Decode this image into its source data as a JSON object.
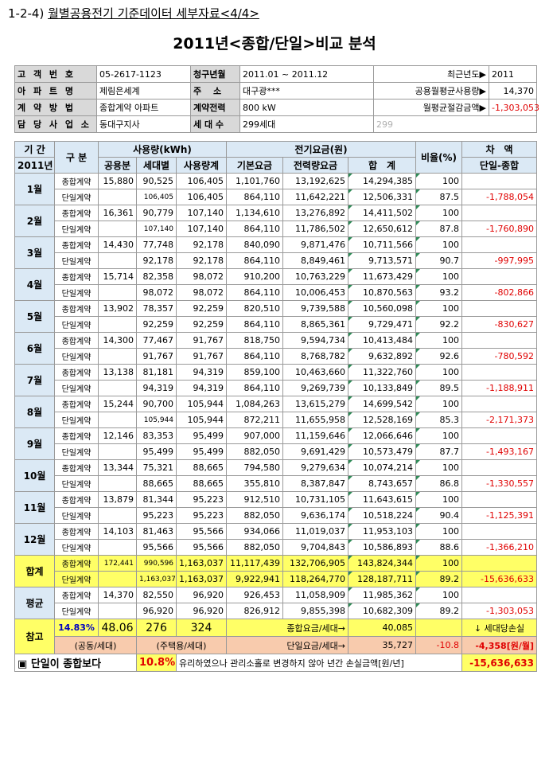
{
  "heading": {
    "prefix": "1-2-4)",
    "text": "월별공용전기 기준데이터 세부자료<4/4>"
  },
  "title": "2011년<종합/단일>비교 분석",
  "info": {
    "customer_no_label": "고 객 번 호",
    "customer_no": "05-2617-1123",
    "bill_month_label": "청구년월",
    "bill_month": "2011.01 ~ 2011.12",
    "recent_year_label": "최근년도▶",
    "recent_year": "2011",
    "apt_label": "아 파 트 명",
    "apt": "제림은세계",
    "address_label": "주　 소",
    "address": "대구광***",
    "avg_usage_label": "공용월평균사용량▶",
    "avg_usage": "14,370",
    "contract_label": "계 약 방 법",
    "contract": "종합계약 아파트",
    "contract_power_label": "계약전력",
    "contract_power": "800 kW",
    "avg_saving_label": "월평균절감금액▶",
    "avg_saving": "-1,303,053",
    "office_label": "담 당 사 업 소",
    "office": "동대구지사",
    "households_label": "세 대 수",
    "households": "299세대",
    "households_num": "299"
  },
  "headers": {
    "period": "기 간",
    "year": "2011년",
    "category": "구 분",
    "usage": "사용량(kWh)",
    "public": "공용분",
    "household": "세대별",
    "usage_total": "사용량계",
    "bill": "전기요금(원)",
    "base": "기본요금",
    "energy": "전력량요금",
    "total": "합　계",
    "ratio": "비율(%)",
    "diff": "차　액",
    "diff_sub": "단일-종합"
  },
  "type_labels": {
    "combined": "종합계약",
    "single": "단일계약"
  },
  "months": [
    {
      "label": "1월",
      "c": [
        "15,880",
        "90,525",
        "106,405",
        "1,101,760",
        "13,192,625",
        "14,294,385",
        "100",
        ""
      ],
      "s": [
        "",
        "106,405",
        "106,405",
        "864,110",
        "11,642,221",
        "12,506,331",
        "87.5",
        "-1,788,054"
      ]
    },
    {
      "label": "2월",
      "c": [
        "16,361",
        "90,779",
        "107,140",
        "1,134,610",
        "13,276,892",
        "14,411,502",
        "100",
        ""
      ],
      "s": [
        "",
        "107,140",
        "107,140",
        "864,110",
        "11,786,502",
        "12,650,612",
        "87.8",
        "-1,760,890"
      ]
    },
    {
      "label": "3월",
      "c": [
        "14,430",
        "77,748",
        "92,178",
        "840,090",
        "9,871,476",
        "10,711,566",
        "100",
        ""
      ],
      "s": [
        "",
        "92,178",
        "92,178",
        "864,110",
        "8,849,461",
        "9,713,571",
        "90.7",
        "-997,995"
      ]
    },
    {
      "label": "4월",
      "c": [
        "15,714",
        "82,358",
        "98,072",
        "910,200",
        "10,763,229",
        "11,673,429",
        "100",
        ""
      ],
      "s": [
        "",
        "98,072",
        "98,072",
        "864,110",
        "10,006,453",
        "10,870,563",
        "93.2",
        "-802,866"
      ]
    },
    {
      "label": "5월",
      "c": [
        "13,902",
        "78,357",
        "92,259",
        "820,510",
        "9,739,588",
        "10,560,098",
        "100",
        ""
      ],
      "s": [
        "",
        "92,259",
        "92,259",
        "864,110",
        "8,865,361",
        "9,729,471",
        "92.2",
        "-830,627"
      ]
    },
    {
      "label": "6월",
      "c": [
        "14,300",
        "77,467",
        "91,767",
        "818,750",
        "9,594,734",
        "10,413,484",
        "100",
        ""
      ],
      "s": [
        "",
        "91,767",
        "91,767",
        "864,110",
        "8,768,782",
        "9,632,892",
        "92.6",
        "-780,592"
      ]
    },
    {
      "label": "7월",
      "c": [
        "13,138",
        "81,181",
        "94,319",
        "859,100",
        "10,463,660",
        "11,322,760",
        "100",
        ""
      ],
      "s": [
        "",
        "94,319",
        "94,319",
        "864,110",
        "9,269,739",
        "10,133,849",
        "89.5",
        "-1,188,911"
      ]
    },
    {
      "label": "8월",
      "c": [
        "15,244",
        "90,700",
        "105,944",
        "1,084,263",
        "13,615,279",
        "14,699,542",
        "100",
        ""
      ],
      "s": [
        "",
        "105,944",
        "105,944",
        "872,211",
        "11,655,958",
        "12,528,169",
        "85.3",
        "-2,171,373"
      ]
    },
    {
      "label": "9월",
      "c": [
        "12,146",
        "83,353",
        "95,499",
        "907,000",
        "11,159,646",
        "12,066,646",
        "100",
        ""
      ],
      "s": [
        "",
        "95,499",
        "95,499",
        "882,050",
        "9,691,429",
        "10,573,479",
        "87.7",
        "-1,493,167"
      ]
    },
    {
      "label": "10월",
      "c": [
        "13,344",
        "75,321",
        "88,665",
        "794,580",
        "9,279,634",
        "10,074,214",
        "100",
        ""
      ],
      "s": [
        "",
        "88,665",
        "88,665",
        "355,810",
        "8,387,847",
        "8,743,657",
        "86.8",
        "-1,330,557"
      ]
    },
    {
      "label": "11월",
      "c": [
        "13,879",
        "81,344",
        "95,223",
        "912,510",
        "10,731,105",
        "11,643,615",
        "100",
        ""
      ],
      "s": [
        "",
        "95,223",
        "95,223",
        "882,050",
        "9,636,174",
        "10,518,224",
        "90.4",
        "-1,125,391"
      ]
    },
    {
      "label": "12월",
      "c": [
        "14,103",
        "81,463",
        "95,566",
        "934,066",
        "11,019,037",
        "11,953,103",
        "100",
        ""
      ],
      "s": [
        "",
        "95,566",
        "95,566",
        "882,050",
        "9,704,843",
        "10,586,893",
        "88.6",
        "-1,366,210"
      ]
    }
  ],
  "total": {
    "label": "합계",
    "c": [
      "172,441",
      "990,596",
      "1,163,037",
      "11,117,439",
      "132,706,905",
      "143,824,344",
      "100",
      ""
    ],
    "s": [
      "",
      "1,163,037",
      "1,163,037",
      "9,922,941",
      "118,264,770",
      "128,187,711",
      "89.2",
      "-15,636,633"
    ]
  },
  "average": {
    "label": "평균",
    "c": [
      "14,370",
      "82,550",
      "96,920",
      "926,453",
      "11,058,909",
      "11,985,362",
      "100",
      ""
    ],
    "s": [
      "",
      "96,920",
      "96,920",
      "826,912",
      "9,855,398",
      "10,682,309",
      "89.2",
      "-1,303,053"
    ]
  },
  "reference": {
    "label": "참고",
    "pct": "14.83%",
    "v1": "48.06",
    "v2": "276",
    "v3": "324",
    "combined_per_hh_label": "종합요금/세대→",
    "combined_per_hh": "40,085",
    "loss_label": "↓ 세대당손실",
    "sub1": "(공동/세대)",
    "sub2": "(주택용/세대)",
    "single_per_hh_label": "단일요금/세대→",
    "single_per_hh": "35,727",
    "diff_pct": "-10.8",
    "loss_value": "-4,358[원/월]"
  },
  "bottom": {
    "icon": "▣",
    "text1": "단일이 종합보다",
    "pct": "10.8%",
    "text2": "유리하였으나 관리소홀로 변경하지 않아 년간 손실금액[원/년]",
    "amount": "-15,636,633"
  }
}
